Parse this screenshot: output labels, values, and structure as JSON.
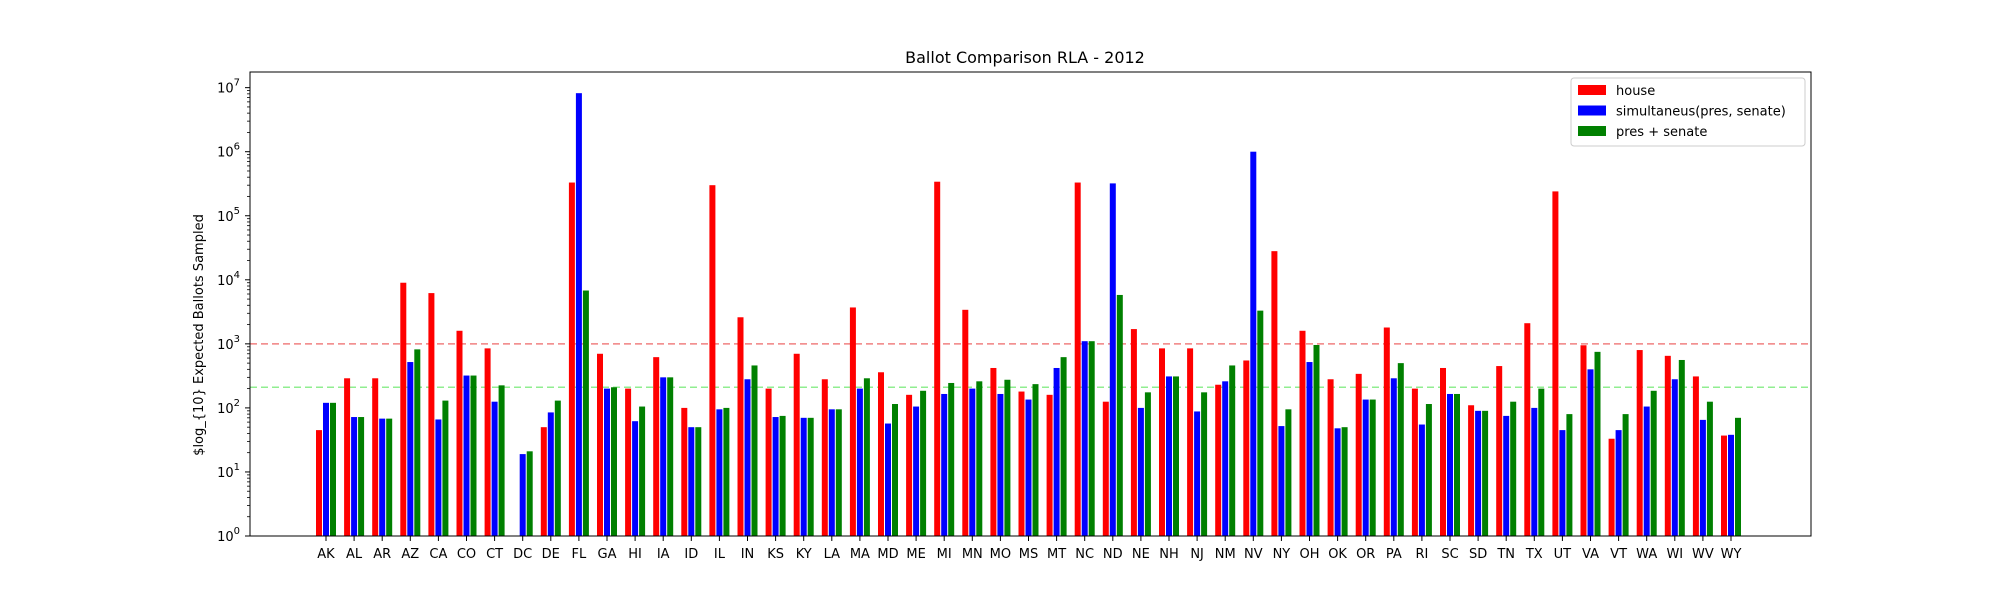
{
  "chart_data": {
    "type": "bar",
    "title": "Ballot Comparison RLA - 2012",
    "xlabel": "",
    "ylabel": "$log_{10} Expected Ballots Sampled",
    "yscale": "log",
    "ylim": [
      1,
      30000000
    ],
    "yticks": [
      {
        "value": 1,
        "base": "10",
        "exp": "0"
      },
      {
        "value": 10,
        "base": "10",
        "exp": "1"
      },
      {
        "value": 100,
        "base": "10",
        "exp": "2"
      },
      {
        "value": 1000,
        "base": "10",
        "exp": "3"
      },
      {
        "value": 10000,
        "base": "10",
        "exp": "4"
      },
      {
        "value": 100000,
        "base": "10",
        "exp": "5"
      },
      {
        "value": 1000000,
        "base": "10",
        "exp": "6"
      },
      {
        "value": 10000000,
        "base": "10",
        "exp": "7"
      }
    ],
    "legend_position": "top-right",
    "categories": [
      "AK",
      "AL",
      "AR",
      "AZ",
      "CA",
      "CO",
      "CT",
      "DC",
      "DE",
      "FL",
      "GA",
      "HI",
      "IA",
      "ID",
      "IL",
      "IN",
      "KS",
      "KY",
      "LA",
      "MA",
      "MD",
      "ME",
      "MI",
      "MN",
      "MO",
      "MS",
      "MT",
      "NC",
      "ND",
      "NE",
      "NH",
      "NJ",
      "NM",
      "NV",
      "NY",
      "OH",
      "OK",
      "OR",
      "PA",
      "RI",
      "SC",
      "SD",
      "TN",
      "TX",
      "UT",
      "VA",
      "VT",
      "WA",
      "WI",
      "WV",
      "WY"
    ],
    "series": [
      {
        "name": "house",
        "color": "#ff0000",
        "values": [
          45,
          290,
          290,
          9000,
          6200,
          1600,
          850,
          null,
          50,
          330000,
          700,
          200,
          620,
          100,
          300000,
          2600,
          200,
          700,
          280,
          3700,
          360,
          160,
          340000,
          3400,
          420,
          180,
          160,
          330000,
          125,
          1700,
          850,
          850,
          230,
          550,
          28000,
          1600,
          280,
          340,
          1800,
          200,
          420,
          110,
          450,
          2100,
          240000,
          950,
          33,
          800,
          650,
          310,
          37
        ]
      },
      {
        "name": "simultaneus(pres, senate)",
        "color": "#0000ff",
        "values": [
          120,
          72,
          68,
          520,
          66,
          320,
          125,
          19,
          85,
          8200000,
          200,
          62,
          300,
          50,
          95,
          280,
          72,
          70,
          95,
          200,
          57,
          105,
          165,
          200,
          165,
          135,
          420,
          1100,
          320000,
          100,
          310,
          88,
          260,
          1000000,
          52,
          520,
          48,
          135,
          290,
          55,
          165,
          90,
          75,
          100,
          45,
          400,
          45,
          105,
          280,
          65,
          38
        ]
      },
      {
        "name": "pres + senate",
        "color": "#008000",
        "values": [
          120,
          72,
          68,
          820,
          130,
          320,
          225,
          21,
          130,
          6800,
          210,
          105,
          300,
          50,
          100,
          460,
          75,
          70,
          95,
          290,
          115,
          185,
          245,
          260,
          275,
          235,
          620,
          1100,
          5800,
          175,
          310,
          175,
          460,
          3300,
          95,
          960,
          50,
          135,
          500,
          115,
          165,
          90,
          125,
          200,
          80,
          750,
          80,
          185,
          560,
          125,
          70
        ]
      }
    ],
    "reference_lines": [
      {
        "y": 1000,
        "color": "#f08080",
        "style": "dashed"
      },
      {
        "y": 210,
        "color": "#90ee90",
        "style": "dashed"
      }
    ]
  }
}
